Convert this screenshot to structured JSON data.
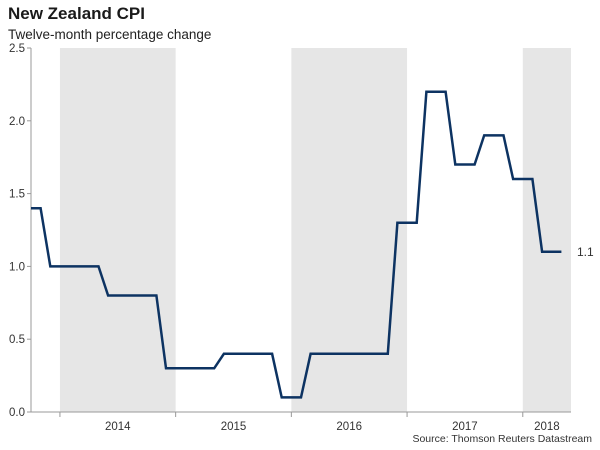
{
  "header": {
    "title": "New Zealand CPI",
    "subtitle": "Twelve-month percentage change",
    "source": "Source: Thomson Reuters Datastream"
  },
  "colors": {
    "line": "#0d3362",
    "shade": "#e6e6e6",
    "axis": "#999999",
    "text": "#333333"
  },
  "chart_data": {
    "type": "line",
    "title": "New Zealand CPI",
    "subtitle": "Twelve-month percentage change",
    "xlabel": "",
    "ylabel": "",
    "ylim": [
      0,
      2.5
    ],
    "yticks": [
      0.0,
      0.5,
      1.0,
      1.5,
      2.0,
      2.5
    ],
    "ytick_labels": [
      "0.0",
      "0.5",
      "1.0",
      "1.5",
      "2.0",
      "2.5"
    ],
    "xlim": [
      "2013-10",
      "2018-06"
    ],
    "years": [
      "2014",
      "2015",
      "2016",
      "2017",
      "2018"
    ],
    "shaded_years": [
      "2014",
      "2016",
      "2018"
    ],
    "grid": false,
    "series": [
      {
        "x": [
          "2013-09",
          "2013-12",
          "2014-03",
          "2014-06",
          "2014-09",
          "2014-12",
          "2015-03",
          "2015-06",
          "2015-09",
          "2015-12",
          "2016-03",
          "2016-06",
          "2016-09",
          "2016-12",
          "2017-03",
          "2017-06",
          "2017-09",
          "2017-12",
          "2018-03"
        ],
        "values": [
          1.4,
          1.0,
          1.0,
          0.8,
          0.8,
          0.3,
          0.3,
          0.4,
          0.4,
          0.1,
          0.4,
          0.4,
          0.4,
          1.3,
          2.2,
          1.7,
          1.9,
          1.6,
          1.1
        ]
      }
    ],
    "last_value_label": "1.1"
  }
}
